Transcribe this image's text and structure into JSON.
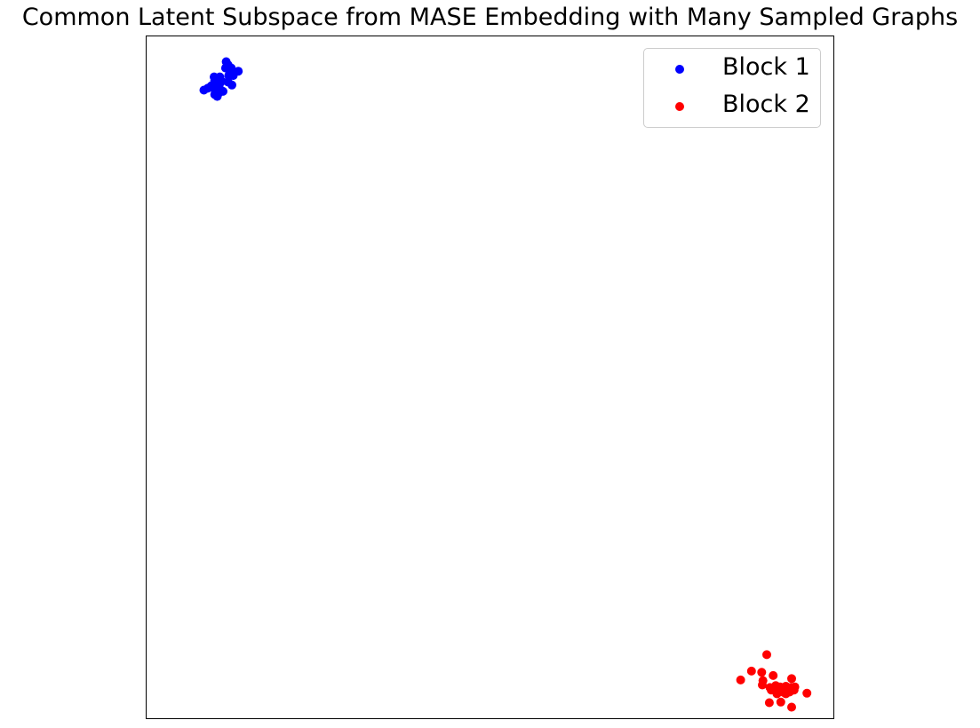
{
  "chart_data": {
    "type": "scatter",
    "title": "Common Latent Subspace from MASE Embedding with Many Sampled Graphs",
    "xlabel": "",
    "ylabel": "",
    "xticks": false,
    "yticks": false,
    "grid": false,
    "legend_position": "top-right",
    "xlim": [
      -0.04,
      1.04
    ],
    "ylim": [
      -0.04,
      1.04
    ],
    "series": [
      {
        "name": "Block 1",
        "color": "#0000ff",
        "points": [
          [
            0.085,
            1.0
          ],
          [
            0.088,
            0.995
          ],
          [
            0.084,
            0.99
          ],
          [
            0.093,
            0.99
          ],
          [
            0.104,
            0.985
          ],
          [
            0.089,
            0.978
          ],
          [
            0.096,
            0.978
          ],
          [
            0.066,
            0.976
          ],
          [
            0.075,
            0.976
          ],
          [
            0.067,
            0.97
          ],
          [
            0.078,
            0.969
          ],
          [
            0.088,
            0.968
          ],
          [
            0.071,
            0.965
          ],
          [
            0.094,
            0.963
          ],
          [
            0.062,
            0.962
          ],
          [
            0.06,
            0.96
          ],
          [
            0.074,
            0.962
          ],
          [
            0.056,
            0.958
          ],
          [
            0.05,
            0.955
          ],
          [
            0.068,
            0.952
          ],
          [
            0.08,
            0.953
          ],
          [
            0.067,
            0.948
          ],
          [
            0.071,
            0.945
          ],
          [
            0.073,
            0.95
          ]
        ]
      },
      {
        "name": "Block 2",
        "color": "#ff0000",
        "points": [
          [
            0.934,
            0.062
          ],
          [
            0.91,
            0.036
          ],
          [
            0.926,
            0.034
          ],
          [
            0.928,
            0.021
          ],
          [
            0.944,
            0.029
          ],
          [
            0.973,
            0.024
          ],
          [
            0.893,
            0.022
          ],
          [
            0.927,
            0.014
          ],
          [
            0.955,
            0.011
          ],
          [
            0.962,
            0.008
          ],
          [
            0.964,
            0.0
          ],
          [
            0.977,
            0.006
          ],
          [
            0.961,
            0.002
          ],
          [
            0.968,
            0.009
          ],
          [
            0.953,
            0.003
          ],
          [
            0.945,
            0.008
          ],
          [
            0.939,
            0.01
          ],
          [
            0.997,
            0.001
          ],
          [
            0.95,
            0.0
          ],
          [
            0.972,
            0.01
          ],
          [
            0.978,
            0.011
          ],
          [
            0.964,
            0.012
          ],
          [
            0.938,
            -0.014
          ],
          [
            0.956,
            -0.013
          ],
          [
            0.973,
            -0.021
          ],
          [
            0.941,
            0.006
          ],
          [
            0.97,
            0.003
          ],
          [
            0.948,
            0.013
          ]
        ]
      }
    ]
  }
}
